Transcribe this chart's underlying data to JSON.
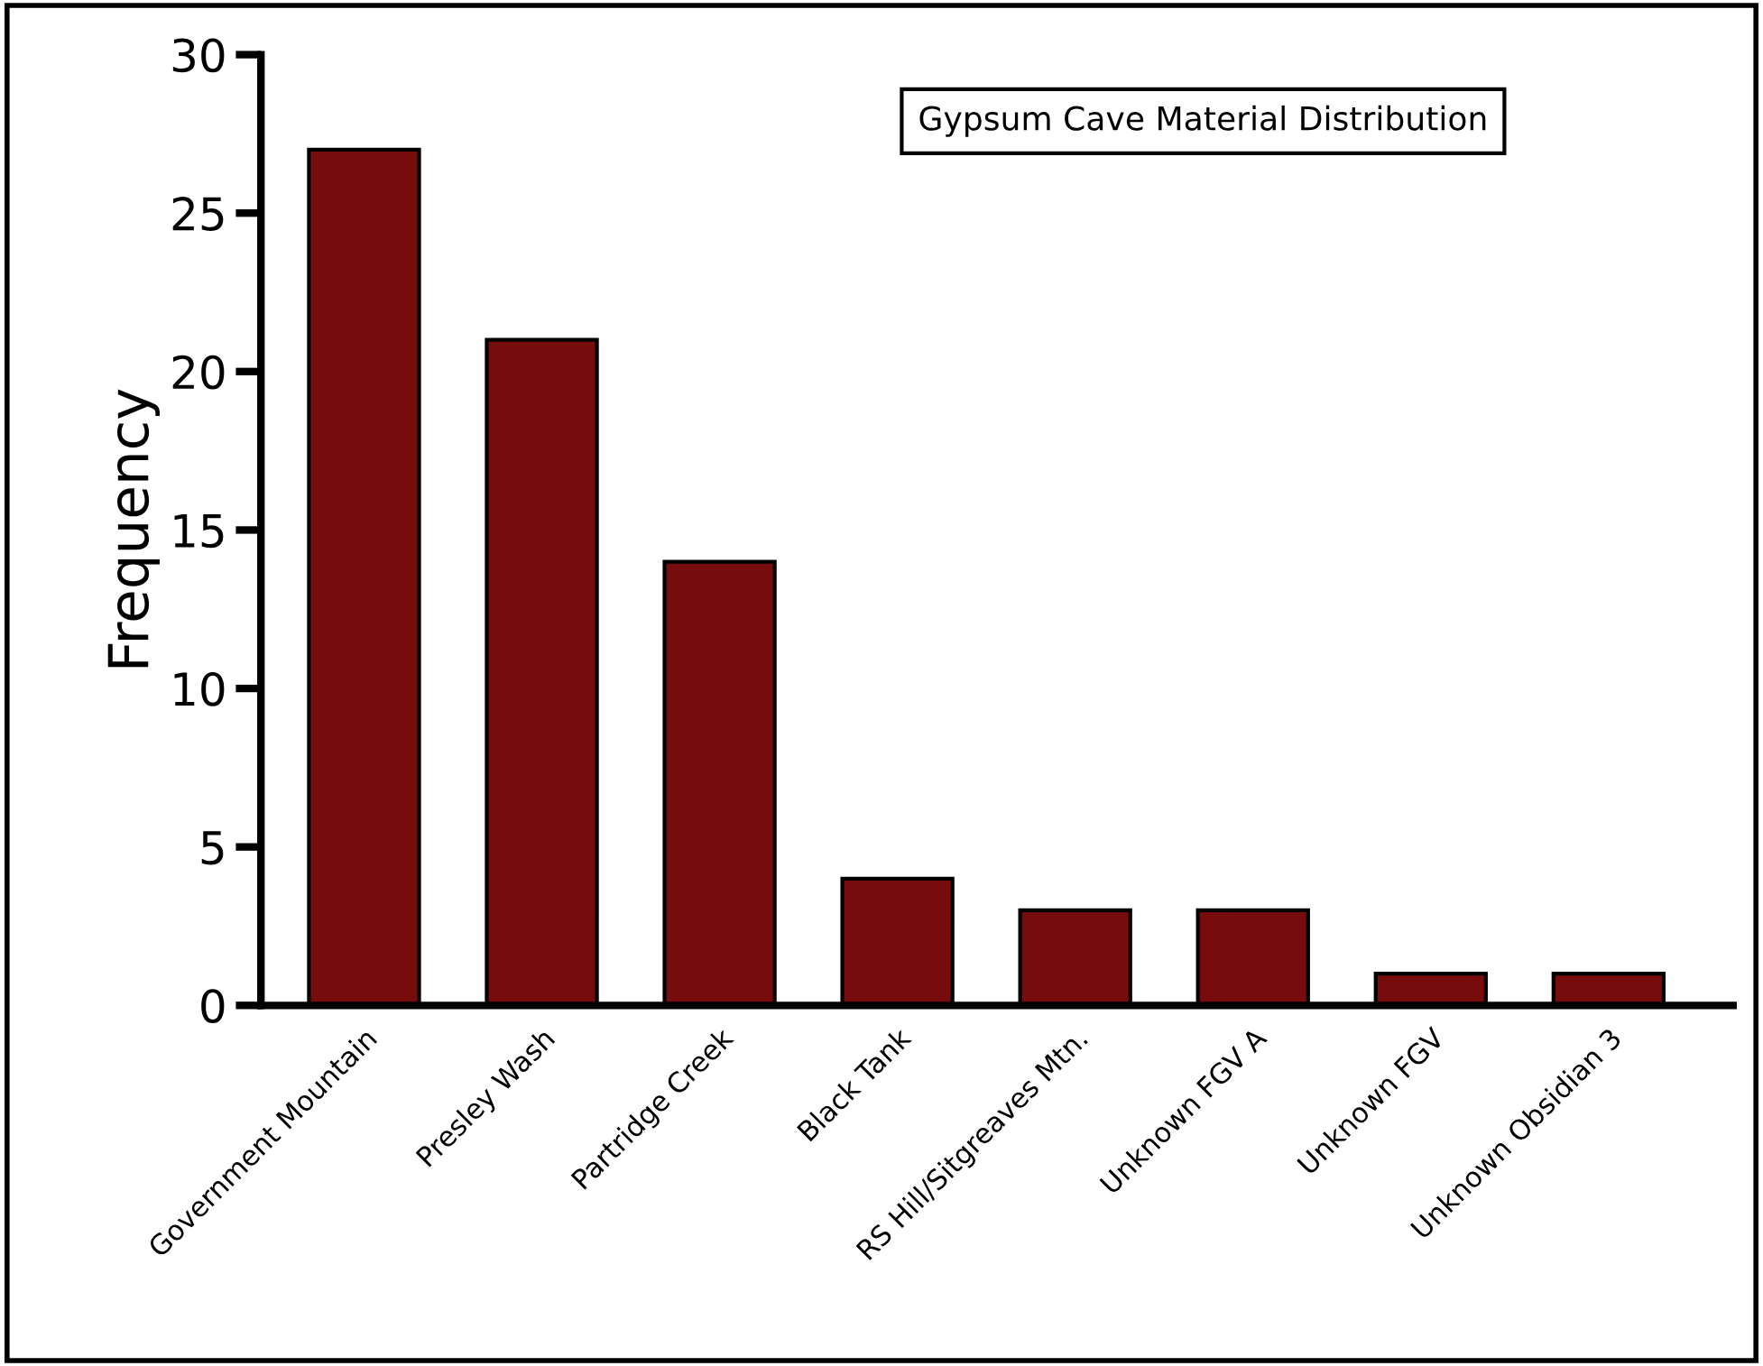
{
  "chart_data": {
    "type": "bar",
    "title": "Gypsum Cave Material Distribution",
    "ylabel": "Frequency",
    "categories": [
      "Government Mountain",
      "Presley Wash",
      "Partridge Creek",
      "Black Tank",
      "RS Hill/Sitgreaves Mtn.",
      "Unknown FGV A",
      "Unknown FGV",
      "Unknown Obsidian 3"
    ],
    "values": [
      27,
      21,
      14,
      4,
      3,
      3,
      1,
      1
    ],
    "color": "#760c0c",
    "ylim": [
      0,
      30
    ],
    "yticks": [
      0,
      5,
      10,
      15,
      20,
      25,
      30
    ],
    "grid": false,
    "legend": false
  }
}
